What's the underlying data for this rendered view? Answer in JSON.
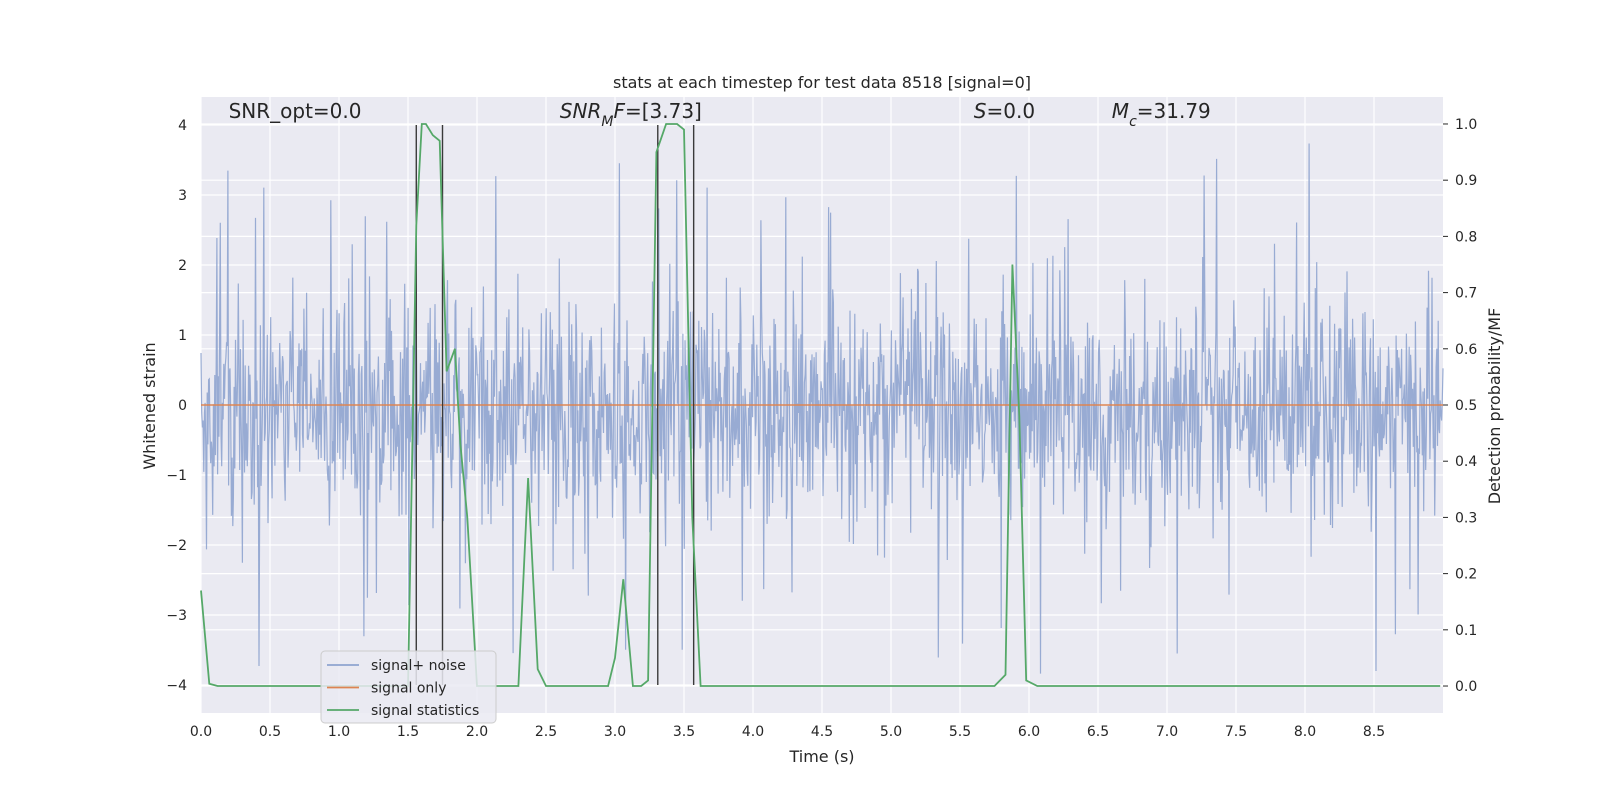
{
  "chart_data": {
    "type": "line",
    "title": "stats at each timestep for test data 8518 [signal=0]",
    "xlabel": "Time (s)",
    "ylabel": "Whitened strain",
    "ylabel_right": "Detection probability/MF",
    "xlim": [
      0.0,
      9.0
    ],
    "ylim": [
      -4.4,
      4.4
    ],
    "ylim_right": [
      -0.048,
      1.048
    ],
    "x_ticks": [
      "0.0",
      "0.5",
      "1.0",
      "1.5",
      "2.0",
      "2.5",
      "3.0",
      "3.5",
      "4.0",
      "4.5",
      "5.0",
      "5.5",
      "6.0",
      "6.5",
      "7.0",
      "7.5",
      "8.0",
      "8.5"
    ],
    "y_ticks": [
      "−4",
      "−3",
      "−2",
      "−1",
      "0",
      "1",
      "2",
      "3",
      "4"
    ],
    "y_right_ticks": [
      "0.0",
      "0.1",
      "0.2",
      "0.3",
      "0.4",
      "0.5",
      "0.6",
      "0.7",
      "0.8",
      "0.9",
      "1.0"
    ],
    "grid": true,
    "legend_position": "lower-left",
    "annotations": [
      {
        "label": "SNR_opt=0.0",
        "x": 0.2,
        "y": 4.1
      },
      {
        "label": "SNR_MF=[3.73]",
        "x": 2.6,
        "y": 4.1
      },
      {
        "label": "S=0.0",
        "x": 5.6,
        "y": 4.1
      },
      {
        "label": "M_c=31.79",
        "x": 6.6,
        "y": 4.1
      }
    ],
    "vertical_lines_x": [
      1.56,
      1.75,
      3.31,
      3.57
    ],
    "series": [
      {
        "name": "signal+ noise",
        "color": "#8fa4cf",
        "description": "whitened noise, roughly +/-2 sigma band with spikes up to ~3.9 and down to ~-3.9",
        "values_sample": {
          "typical_band": [
            -1.6,
            1.6
          ],
          "max": 3.97,
          "min": -3.97
        }
      },
      {
        "name": "signal only",
        "color": "#dd8452",
        "x": [
          0.0,
          9.0
        ],
        "y": [
          0.0,
          0.0
        ]
      },
      {
        "name": "signal statistics",
        "color": "#55a868",
        "axis": "right",
        "x": [
          0.0,
          0.06,
          0.12,
          1.4,
          1.5,
          1.53,
          1.56,
          1.6,
          1.63,
          1.68,
          1.73,
          1.78,
          1.84,
          1.88,
          1.93,
          2.0,
          2.1,
          2.3,
          2.37,
          2.44,
          2.5,
          2.95,
          3.0,
          3.06,
          3.13,
          3.19,
          3.24,
          3.3,
          3.37,
          3.45,
          3.5,
          3.56,
          3.62,
          3.7,
          5.75,
          5.83,
          5.88,
          5.93,
          5.98,
          6.06,
          6.12,
          8.98
        ],
        "y": [
          0.17,
          0.004,
          0.0,
          0.0,
          0.0,
          0.4,
          0.82,
          1.0,
          1.0,
          0.98,
          0.97,
          0.56,
          0.6,
          0.43,
          0.3,
          0.0,
          0.0,
          0.0,
          0.37,
          0.03,
          0.0,
          0.0,
          0.05,
          0.19,
          0.0,
          0.0,
          0.01,
          0.95,
          1.0,
          1.0,
          0.99,
          0.3,
          0.0,
          0.0,
          0.0,
          0.02,
          0.75,
          0.48,
          0.01,
          0.0,
          0.0,
          0.0
        ]
      }
    ]
  }
}
